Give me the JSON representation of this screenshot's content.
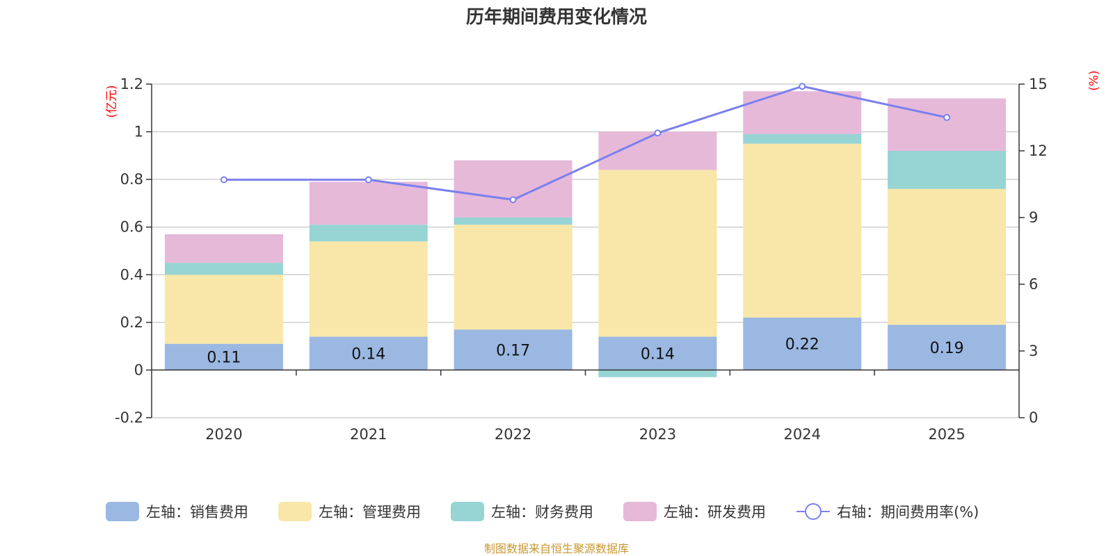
{
  "chart_data": {
    "type": "bar",
    "title": "历年期间费用变化情况",
    "categories": [
      "2020",
      "2021",
      "2022",
      "2023",
      "2024",
      "2025"
    ],
    "left_axis": {
      "unit": "(亿元)",
      "ylim": [
        -0.2,
        1.2
      ],
      "ticks": [
        "-0.2",
        "0",
        "0.2",
        "0.4",
        "0.6",
        "0.8",
        "1",
        "1.2"
      ]
    },
    "right_axis": {
      "unit": "(%)",
      "ylim": [
        0,
        15
      ],
      "ticks": [
        "0",
        "3",
        "6",
        "9",
        "12",
        "15"
      ]
    },
    "series": [
      {
        "name": "左轴：销售费用",
        "type": "bar",
        "color": "#9bb8e2",
        "values": [
          0.11,
          0.14,
          0.17,
          0.14,
          0.22,
          0.19
        ],
        "labels": [
          "0.11",
          "0.14",
          "0.17",
          "0.14",
          "0.22",
          "0.19"
        ]
      },
      {
        "name": "左轴：管理费用",
        "type": "bar",
        "color": "#f8e7a8",
        "values": [
          0.29,
          0.4,
          0.44,
          0.7,
          0.73,
          0.57
        ]
      },
      {
        "name": "左轴：财务费用",
        "type": "bar",
        "color": "#97d4d4",
        "values": [
          0.05,
          0.07,
          0.03,
          -0.03,
          0.04,
          0.16
        ]
      },
      {
        "name": "左轴：研发费用",
        "type": "bar",
        "color": "#e6b9d9",
        "values": [
          0.12,
          0.18,
          0.24,
          0.16,
          0.18,
          0.22
        ]
      },
      {
        "name": "右轴：期间费用率(%)",
        "type": "line",
        "axis": "right",
        "color": "#7b7fef",
        "values": [
          10.7,
          10.7,
          9.8,
          12.8,
          14.9,
          13.5
        ]
      }
    ],
    "grid": true,
    "legend": "bottom",
    "source": "制图数据来自恒生聚源数据库"
  }
}
